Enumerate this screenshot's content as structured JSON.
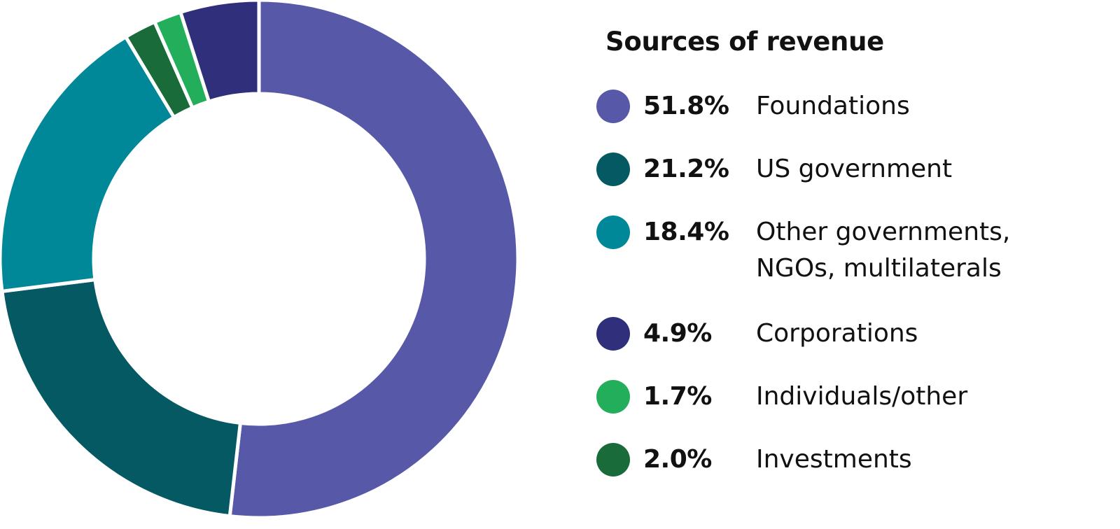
{
  "chart_data": {
    "type": "pie",
    "variant": "donut",
    "title": "Sources of revenue",
    "start_angle_deg": 0,
    "direction": "clockwise",
    "slices": [
      {
        "label": "Foundations",
        "value": 51.8,
        "value_label": "51.8%",
        "color": "#5759A8"
      },
      {
        "label": "US government",
        "value": 21.2,
        "value_label": "21.2%",
        "color": "#045962"
      },
      {
        "label": "Other governments,\nNGOs, multilaterals",
        "value": 18.4,
        "value_label": "18.4%",
        "color": "#018898"
      },
      {
        "label": "Investments",
        "value": 2.0,
        "value_label": "2.0%",
        "color": "#196B3A"
      },
      {
        "label": "Individuals/other",
        "value": 1.7,
        "value_label": "1.7%",
        "color": "#22AE5B"
      },
      {
        "label": "Corporations",
        "value": 4.9,
        "value_label": "4.9%",
        "color": "#302F7B"
      }
    ],
    "legend": {
      "placement": "right",
      "order": [
        "Foundations",
        "US government",
        "Other governments,\nNGOs, multilaterals",
        "Corporations",
        "Individuals/other",
        "Investments"
      ]
    }
  }
}
